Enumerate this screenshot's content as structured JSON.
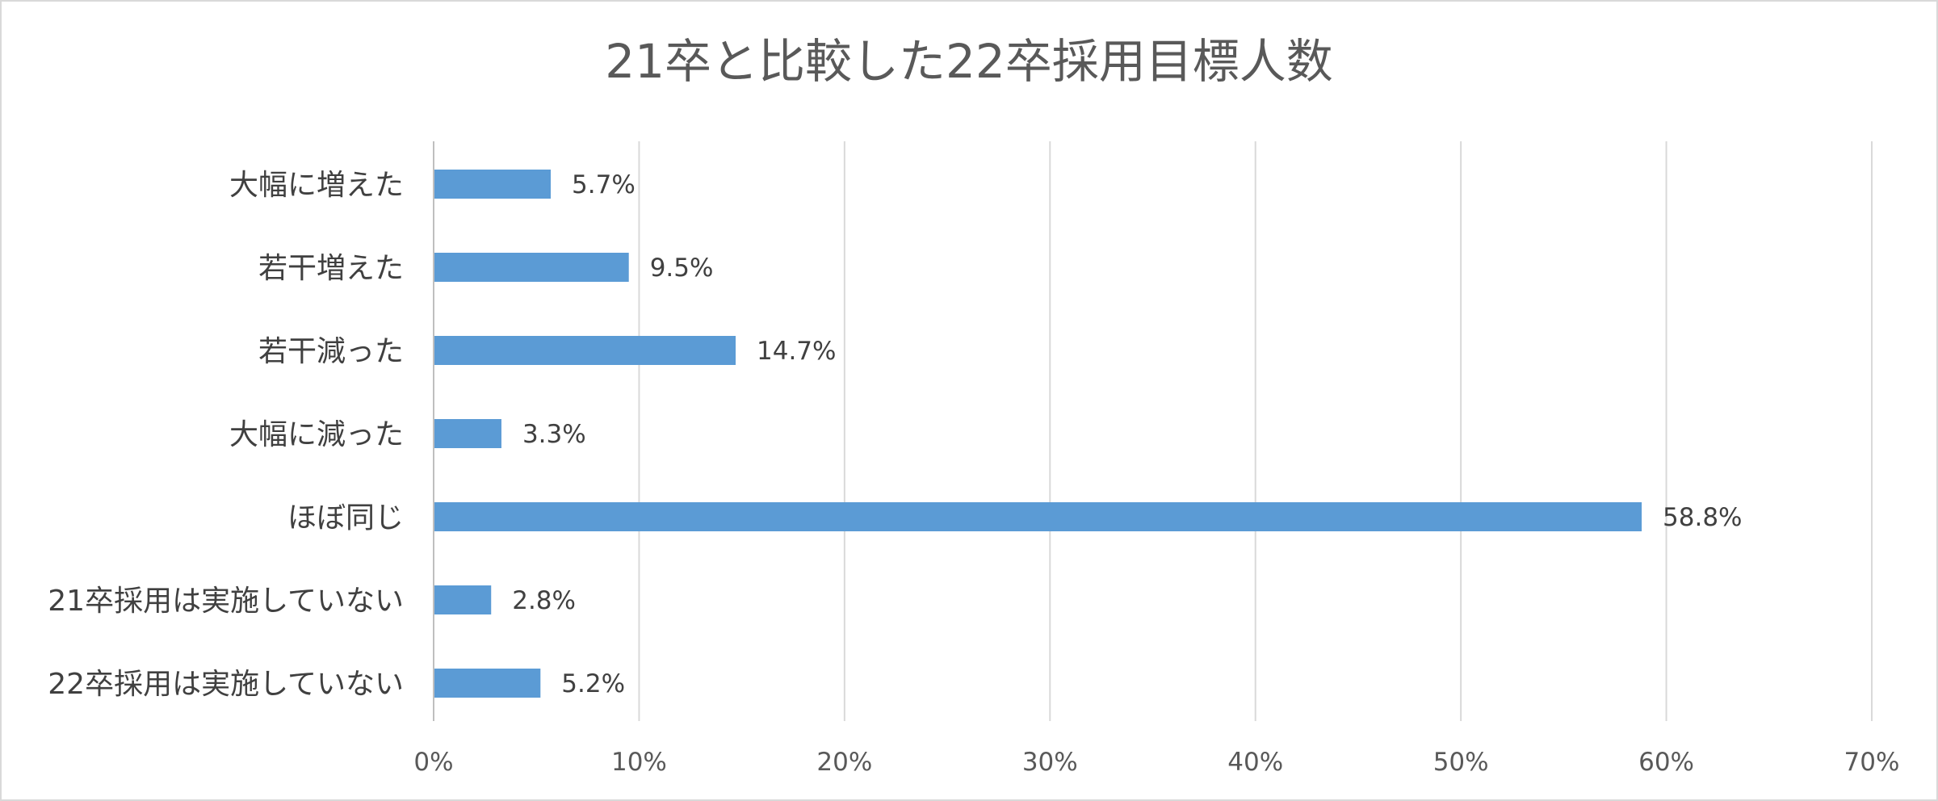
{
  "chart_data": {
    "type": "bar",
    "orientation": "horizontal",
    "title": "21卒と比較した22卒採用目標人数",
    "categories": [
      "大幅に増えた",
      "若干増えた",
      "若干減った",
      "大幅に減った",
      "ほぼ同じ",
      "21卒採用は実施していない",
      "22卒採用は実施していない"
    ],
    "values": [
      5.7,
      9.5,
      14.7,
      3.3,
      58.8,
      2.8,
      5.2
    ],
    "data_labels": [
      "5.7%",
      "9.5%",
      "14.7%",
      "3.3%",
      "58.8%",
      "2.8%",
      "5.2%"
    ],
    "xlim": [
      0,
      70
    ],
    "x_ticks": [
      0,
      10,
      20,
      30,
      40,
      50,
      60,
      70
    ],
    "x_tick_labels": [
      "0%",
      "10%",
      "20%",
      "30%",
      "40%",
      "50%",
      "60%",
      "70%"
    ],
    "grid": true,
    "legend": "none",
    "colors": {
      "bar": "#5b9bd5",
      "grid": "#d9d9d9",
      "axis": "#bfbfbf"
    }
  }
}
